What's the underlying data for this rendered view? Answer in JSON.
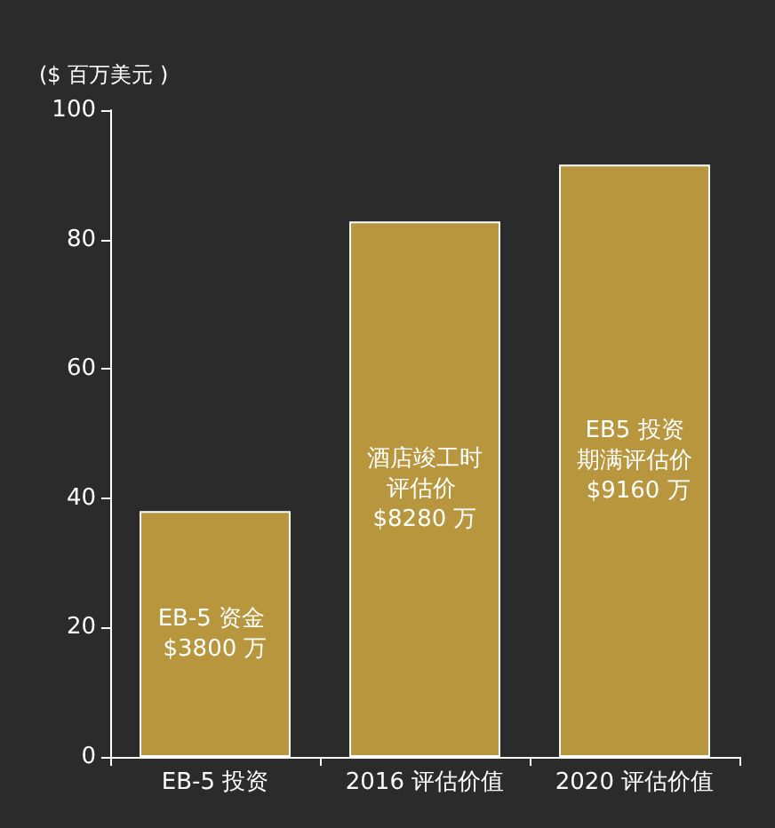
{
  "chart_data": {
    "type": "bar",
    "ylabel": "($ 百万美元 )",
    "categories": [
      "EB-5 投资",
      "2016 评估价值",
      "2020 评估价值"
    ],
    "values": [
      38,
      82.8,
      91.6
    ],
    "value_labels": [
      "EB-5 资金 $3800 万",
      "酒店竣工时评估价 $8280 万",
      "EB5 投资期满评估价 $9160 万"
    ],
    "color": "#b8963e",
    "ylim": [
      0,
      100
    ],
    "yticks": [
      0,
      20,
      40,
      60,
      80,
      100
    ],
    "grid": false
  }
}
